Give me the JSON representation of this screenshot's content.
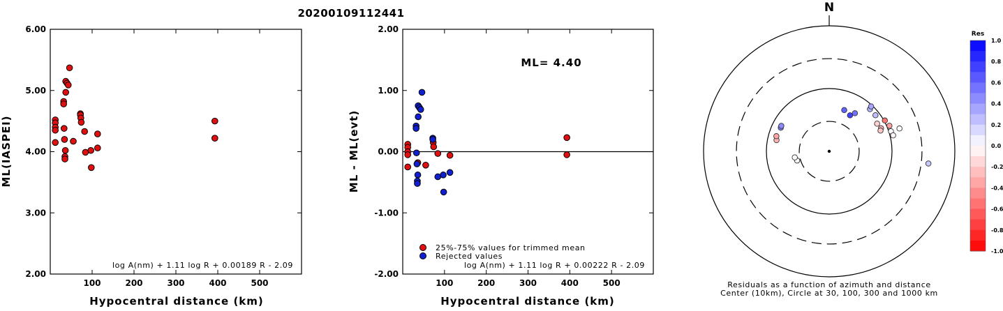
{
  "title": "20200109112441",
  "chart_data": [
    {
      "type": "scatter",
      "xlabel": "Hypocentral distance (km)",
      "ylabel": "ML(IASPEI)",
      "xlim": [
        0,
        600
      ],
      "ylim": [
        2.0,
        6.0
      ],
      "xticks": [
        "100",
        "200",
        "300",
        "400",
        "500"
      ],
      "xtick_values": [
        100,
        200,
        300,
        400,
        500
      ],
      "yticks": [
        "2.00",
        "3.00",
        "4.00",
        "5.00",
        "6.00"
      ],
      "ytick_values": [
        2.0,
        3.0,
        4.0,
        5.0,
        6.0
      ],
      "formula": "log A(nm) + 1.11 log R + 0.00189 R - 2.09",
      "series": [
        {
          "color": "#e01010",
          "points": [
            [
              12,
              4.52
            ],
            [
              12,
              4.47
            ],
            [
              12,
              4.4
            ],
            [
              12,
              4.35
            ],
            [
              12,
              4.15
            ],
            [
              32,
              4.82
            ],
            [
              32,
              4.78
            ],
            [
              33,
              4.38
            ],
            [
              34,
              4.2
            ],
            [
              35,
              3.92
            ],
            [
              35,
              3.88
            ],
            [
              36,
              4.02
            ],
            [
              37,
              5.15
            ],
            [
              37,
              4.97
            ],
            [
              40,
              5.12
            ],
            [
              43,
              5.09
            ],
            [
              46,
              5.37
            ],
            [
              55,
              4.17
            ],
            [
              72,
              4.62
            ],
            [
              72,
              4.6
            ],
            [
              73,
              4.55
            ],
            [
              74,
              4.48
            ],
            [
              82,
              4.33
            ],
            [
              84,
              3.99
            ],
            [
              97,
              4.02
            ],
            [
              98,
              3.74
            ],
            [
              113,
              4.29
            ],
            [
              113,
              4.06
            ],
            [
              393,
              4.5
            ],
            [
              393,
              4.22
            ]
          ]
        }
      ]
    },
    {
      "type": "scatter",
      "xlabel": "Hypocentral distance (km)",
      "ylabel": "ML - ML(evt)",
      "xlim": [
        0,
        600
      ],
      "ylim": [
        -2.0,
        2.0
      ],
      "xticks": [
        "100",
        "200",
        "300",
        "400",
        "500"
      ],
      "xtick_values": [
        100,
        200,
        300,
        400,
        500
      ],
      "yticks": [
        "-2.00",
        "-1.00",
        "0.00",
        "1.00",
        "2.00"
      ],
      "ytick_values": [
        -2.0,
        -1.0,
        0.0,
        1.0,
        2.0
      ],
      "zero_line": 0.0,
      "annotation": "ML= 4.40",
      "formula": "log A(nm) + 1.11 log R + 0.00222 R - 2.09",
      "legend": [
        {
          "label": "25%-75% values for trimmed mean",
          "color": "#e01010"
        },
        {
          "label": "Rejected values",
          "color": "#1020d0"
        }
      ],
      "series": [
        {
          "name": "25%-75% values for trimmed mean",
          "color": "#e01010",
          "points": [
            [
              12,
              0.12
            ],
            [
              12,
              0.07
            ],
            [
              12,
              0.0
            ],
            [
              12,
              -0.05
            ],
            [
              12,
              -0.25
            ],
            [
              36,
              -0.18
            ],
            [
              55,
              -0.22
            ],
            [
              73,
              0.15
            ],
            [
              74,
              0.08
            ],
            [
              84,
              -0.03
            ],
            [
              113,
              -0.06
            ],
            [
              393,
              0.23
            ],
            [
              393,
              -0.05
            ]
          ]
        },
        {
          "name": "Rejected values",
          "color": "#1020d0",
          "points": [
            [
              32,
              0.42
            ],
            [
              32,
              0.38
            ],
            [
              33,
              -0.02
            ],
            [
              34,
              -0.2
            ],
            [
              35,
              -0.48
            ],
            [
              35,
              -0.52
            ],
            [
              36,
              -0.38
            ],
            [
              37,
              0.75
            ],
            [
              37,
              0.57
            ],
            [
              40,
              0.72
            ],
            [
              43,
              0.69
            ],
            [
              46,
              0.97
            ],
            [
              72,
              0.22
            ],
            [
              72,
              0.2
            ],
            [
              84,
              -0.41
            ],
            [
              97,
              -0.38
            ],
            [
              98,
              -0.66
            ],
            [
              113,
              -0.34
            ]
          ]
        }
      ]
    },
    {
      "type": "scatter",
      "subtype": "polar",
      "north_label": "N",
      "caption_line1": "Residuals as a function of azimuth and distance",
      "caption_line2": "Center (10km), Circle at 30, 100, 300 and 1000 km",
      "circles": [
        {
          "distance_km": 30,
          "style": "dashed"
        },
        {
          "distance_km": 100,
          "style": "solid"
        },
        {
          "distance_km": 300,
          "style": "dashed"
        },
        {
          "distance_km": 1000,
          "style": "solid"
        }
      ],
      "colorbar": {
        "label": "Res",
        "ticks": [
          "1.0",
          "0.8",
          "0.6",
          "0.4",
          "0.2",
          "0.0",
          "-0.2",
          "-0.4",
          "-0.6",
          "-0.8",
          "-1.0"
        ],
        "tick_values": [
          1.0,
          0.8,
          0.6,
          0.4,
          0.2,
          0.0,
          -0.2,
          -0.4,
          -0.6,
          -0.8,
          -1.0
        ],
        "max_color": "#0000ff",
        "zero_color": "#ffffff",
        "min_color": "#ff0000"
      },
      "stations": [
        {
          "distance_km": 34,
          "azimuth_deg": 254,
          "residual": 0.02
        },
        {
          "distance_km": 36,
          "azimuth_deg": 260,
          "residual": -0.02
        },
        {
          "distance_km": 72,
          "azimuth_deg": 282,
          "residual": -0.3
        },
        {
          "distance_km": 75,
          "azimuth_deg": 286,
          "residual": -0.35
        },
        {
          "distance_km": 72,
          "azimuth_deg": 296,
          "residual": 0.52
        },
        {
          "distance_km": 73,
          "azimuth_deg": 298,
          "residual": 0.45
        },
        {
          "distance_km": 50,
          "azimuth_deg": 20,
          "residual": 0.62
        },
        {
          "distance_km": 46,
          "azimuth_deg": 30,
          "residual": 0.75
        },
        {
          "distance_km": 54,
          "azimuth_deg": 34,
          "residual": 0.55
        },
        {
          "distance_km": 86,
          "azimuth_deg": 44,
          "residual": 0.3
        },
        {
          "distance_km": 95,
          "azimuth_deg": 43,
          "residual": 0.35
        },
        {
          "distance_km": 86,
          "azimuth_deg": 52,
          "residual": 0.25
        },
        {
          "distance_km": 76,
          "azimuth_deg": 60,
          "residual": -0.18
        },
        {
          "distance_km": 80,
          "azimuth_deg": 66,
          "residual": -0.3
        },
        {
          "distance_km": 76,
          "azimuth_deg": 68,
          "residual": -0.22
        },
        {
          "distance_km": 103,
          "azimuth_deg": 61,
          "residual": -0.55
        },
        {
          "distance_km": 110,
          "azimuth_deg": 67,
          "residual": -0.38
        },
        {
          "distance_km": 108,
          "azimuth_deg": 72,
          "residual": 0.02
        },
        {
          "distance_km": 112,
          "azimuth_deg": 76,
          "residual": -0.04
        },
        {
          "distance_km": 150,
          "azimuth_deg": 72,
          "residual": -0.02
        },
        {
          "distance_km": 390,
          "azimuth_deg": 97,
          "residual": 0.22
        }
      ]
    }
  ]
}
